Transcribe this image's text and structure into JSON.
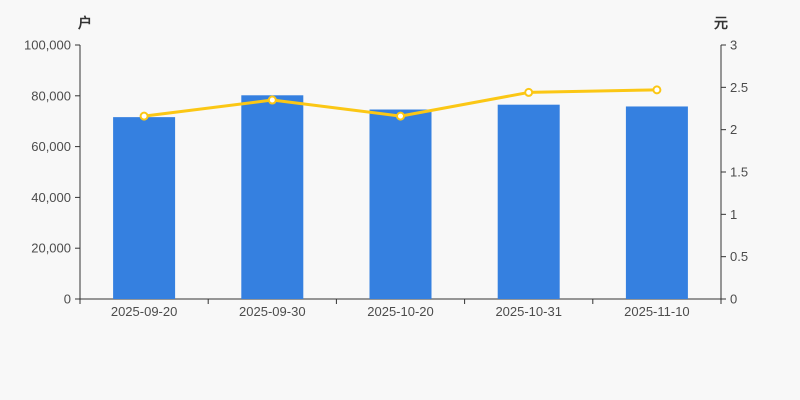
{
  "page": {
    "background": "#f8f8f8"
  },
  "chart_data": {
    "type": "bar",
    "title": "",
    "categories": [
      "2025-09-20",
      "2025-09-30",
      "2025-10-20",
      "2025-10-31",
      "2025-11-10"
    ],
    "series": [
      {
        "name": "户",
        "type": "bar",
        "axis": "left",
        "color": "#3580e0",
        "values": [
          71600,
          80200,
          74600,
          76500,
          75800
        ]
      },
      {
        "name": "元",
        "type": "line",
        "axis": "right",
        "color": "#fbc715",
        "marker_fill": "#ffffff",
        "values": [
          2.16,
          2.35,
          2.16,
          2.44,
          2.47
        ]
      }
    ],
    "left_axis": {
      "unit": "户",
      "min": 0,
      "max": 100000,
      "tick_labels": [
        "0",
        "20,000",
        "40,000",
        "60,000",
        "80,000",
        "100,000"
      ]
    },
    "right_axis": {
      "unit": "元",
      "min": 0,
      "max": 3,
      "tick_labels": [
        "0",
        "0.5",
        "1",
        "1.5",
        "2",
        "2.5",
        "3"
      ]
    },
    "grid": false,
    "legend": "none",
    "axis_color": "#333333",
    "tick_label_color": "#4c4c4c"
  }
}
